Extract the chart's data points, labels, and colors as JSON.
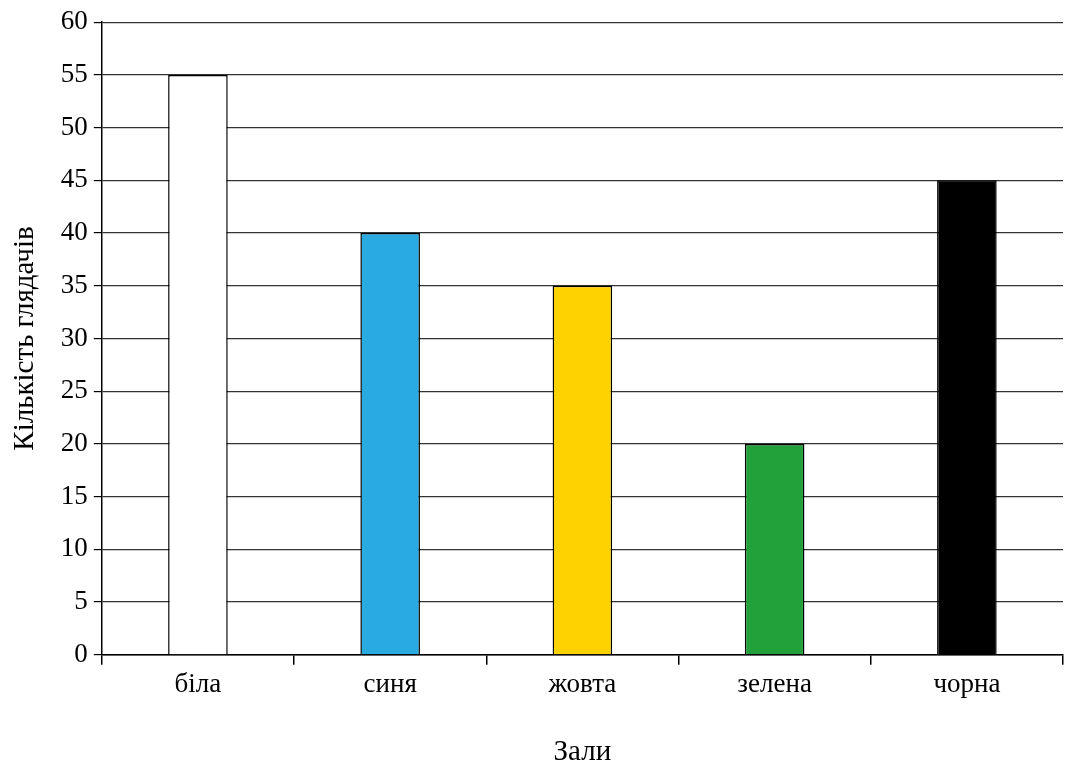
{
  "chart_data": {
    "type": "bar",
    "xlabel": "Зали",
    "ylabel": "Кількість глядачів",
    "categories": [
      "біла",
      "синя",
      "жовта",
      "зелена",
      "чорна"
    ],
    "values": [
      55,
      40,
      35,
      20,
      45
    ],
    "colors": [
      "#ffffff",
      "#29abe2",
      "#fdd200",
      "#22a13a",
      "#000000"
    ],
    "ylim": [
      0,
      60
    ],
    "yticks": [
      0,
      5,
      10,
      15,
      20,
      25,
      30,
      35,
      40,
      45,
      50,
      55,
      60
    ],
    "grid": "y",
    "legend": false
  }
}
